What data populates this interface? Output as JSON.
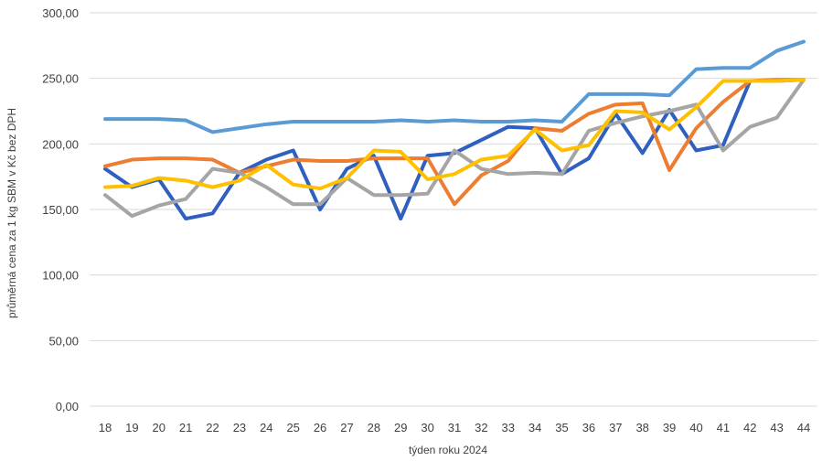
{
  "chart_data": {
    "type": "line",
    "title": "",
    "xlabel": "týden roku 2024",
    "ylabel": "průměrná cena za 1 kg SBM v Kč bez DPH",
    "ylim": [
      0,
      300
    ],
    "yticks": [
      "0,00",
      "50,00",
      "100,00",
      "150,00",
      "200,00",
      "250,00",
      "300,00"
    ],
    "ytick_values": [
      0,
      50,
      100,
      150,
      200,
      250,
      300
    ],
    "grid": "horizontal",
    "legend": "none",
    "categories": [
      "18",
      "19",
      "20",
      "21",
      "22",
      "23",
      "24",
      "25",
      "26",
      "27",
      "28",
      "29",
      "30",
      "31",
      "32",
      "33",
      "34",
      "35",
      "36",
      "37",
      "38",
      "39",
      "40",
      "41",
      "42",
      "43",
      "44"
    ],
    "series": [
      {
        "color": "#5B9BD5",
        "values": [
          219,
          219,
          219,
          218,
          209,
          212,
          215,
          217,
          217,
          217,
          217,
          218,
          217,
          218,
          217,
          217,
          218,
          217,
          238,
          238,
          238,
          237,
          257,
          258,
          258,
          271,
          278
        ]
      },
      {
        "color": "#2F5FBF",
        "values": [
          181,
          167,
          173,
          143,
          147,
          178,
          188,
          195,
          150,
          181,
          191,
          143,
          191,
          193,
          203,
          213,
          212,
          177,
          189,
          223,
          193,
          226,
          195,
          199,
          248,
          248,
          249
        ]
      },
      {
        "color": "#ED7D31",
        "values": [
          183,
          188,
          189,
          189,
          188,
          178,
          183,
          188,
          187,
          187,
          189,
          189,
          189,
          154,
          176,
          187,
          212,
          210,
          223,
          230,
          231,
          180,
          212,
          232,
          248,
          249,
          249
        ]
      },
      {
        "color": "#A5A5A5",
        "values": [
          161,
          145,
          153,
          158,
          181,
          178,
          167,
          154,
          154,
          174,
          161,
          161,
          162,
          195,
          181,
          177,
          178,
          177,
          210,
          216,
          221,
          225,
          230,
          195,
          213,
          220,
          249
        ]
      },
      {
        "color": "#FFC000",
        "values": [
          167,
          168,
          174,
          172,
          167,
          172,
          184,
          169,
          166,
          174,
          195,
          194,
          173,
          177,
          188,
          191,
          211,
          195,
          199,
          225,
          224,
          211,
          228,
          248,
          248,
          248,
          249
        ]
      }
    ]
  }
}
